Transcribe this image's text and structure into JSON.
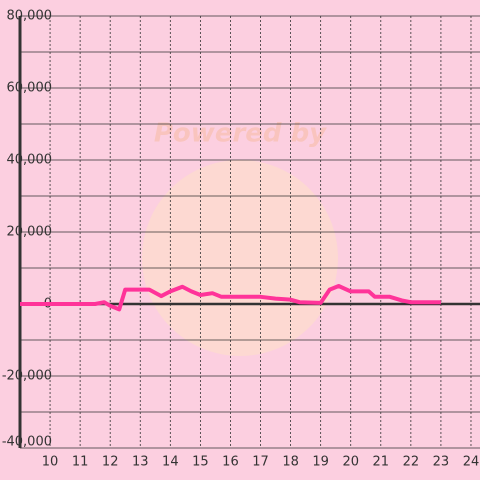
{
  "chart_data": {
    "type": "line",
    "watermark": "Powered by",
    "x": [
      9,
      11.5,
      11.8,
      12,
      12.3,
      12.5,
      13,
      13.3,
      13.7,
      14,
      14.4,
      14.7,
      15,
      15.4,
      15.7,
      16,
      17,
      17.5,
      18,
      18.3,
      19,
      19.3,
      19.6,
      20,
      20.6,
      20.8,
      21.3,
      21.7,
      22,
      23
    ],
    "series": [
      {
        "color": "#ff3399",
        "values": [
          0,
          0,
          500,
          -500,
          -1500,
          4000,
          4000,
          4000,
          2200,
          3500,
          4800,
          3500,
          2500,
          3000,
          2000,
          2000,
          2000,
          1500,
          1200,
          500,
          300,
          4000,
          5000,
          3500,
          3500,
          2000,
          2000,
          1000,
          500,
          500
        ]
      }
    ],
    "xlim": [
      9,
      24.3
    ],
    "xticks": [
      10,
      11,
      12,
      13,
      14,
      15,
      16,
      17,
      18,
      19,
      20,
      21,
      22,
      23,
      24
    ],
    "ylim": [
      -40000,
      80000
    ],
    "yticks": [
      {
        "value": -40000,
        "label": "-40,000"
      },
      {
        "value": -20000,
        "label": "-20,000"
      },
      0,
      {
        "value": 20000,
        "label": "20,000"
      },
      {
        "value": 40000,
        "label": "40,000"
      },
      {
        "value": 60000,
        "label": "60,000"
      },
      {
        "value": 80000,
        "label": "80,000"
      }
    ],
    "y_minor_ticks": [
      -30000,
      -10000,
      10000,
      30000,
      50000,
      70000
    ],
    "grid": true
  }
}
